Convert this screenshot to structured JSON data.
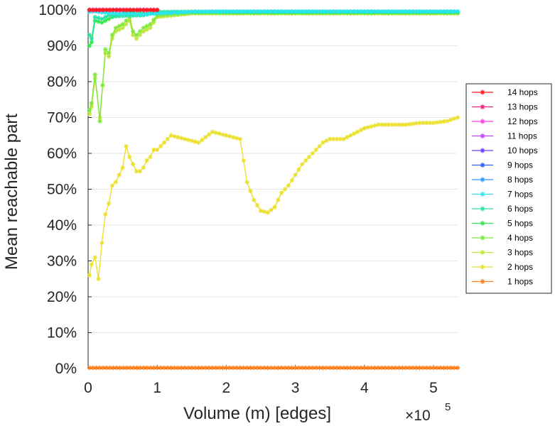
{
  "chart_data": {
    "type": "line",
    "title": "",
    "xlabel": "Volume (m) [edges]",
    "ylabel": "Mean reachable part",
    "x_exponent_label": "×10",
    "x_exponent_power": "5",
    "x_scale": 100000,
    "xlim": [
      0,
      535000
    ],
    "ylim": [
      0,
      100
    ],
    "x_ticks": [
      0,
      100000,
      200000,
      300000,
      400000,
      500000
    ],
    "x_tick_labels": [
      "0",
      "1",
      "2",
      "3",
      "4",
      "5"
    ],
    "y_ticks": [
      0,
      10,
      20,
      30,
      40,
      50,
      60,
      70,
      80,
      90,
      100
    ],
    "y_tick_labels": [
      "0%",
      "10%",
      "20%",
      "30%",
      "40%",
      "50%",
      "60%",
      "70%",
      "80%",
      "90%",
      "100%"
    ],
    "grid": "horizontal",
    "legend_position": "right",
    "series": [
      {
        "name": "14 hops",
        "color": "#ff1a1a",
        "x": [
          2000,
          100000
        ],
        "y": [
          100,
          100
        ]
      },
      {
        "name": "13 hops",
        "color": "#ff1f7a",
        "x": [
          2000,
          100000
        ],
        "y": [
          100,
          100
        ]
      },
      {
        "name": "12 hops",
        "color": "#ff3fe0",
        "x": [
          2000,
          100000
        ],
        "y": [
          100,
          100
        ]
      },
      {
        "name": "11 hops",
        "color": "#c040ff",
        "x": [
          2000,
          100000
        ],
        "y": [
          100,
          100
        ]
      },
      {
        "name": "10 hops",
        "color": "#6a3dff",
        "x": [
          2000,
          100000
        ],
        "y": [
          100,
          100
        ]
      },
      {
        "name": "9 hops",
        "color": "#2f5cff",
        "x": [
          2000,
          100000
        ],
        "y": [
          100,
          100
        ]
      },
      {
        "name": "8 hops",
        "color": "#2f9bff",
        "x": [
          2000,
          100000
        ],
        "y": [
          100,
          100
        ]
      },
      {
        "name": "7 hops",
        "color": "#28e5f2",
        "x": [
          2000,
          10000,
          20000,
          40000,
          60000,
          80000,
          100000,
          150000,
          200000,
          300000,
          400000,
          535000
        ],
        "y": [
          99.5,
          99.6,
          99.3,
          99.0,
          99.0,
          98.8,
          99.0,
          99.5,
          99.6,
          99.6,
          99.6,
          99.6
        ]
      },
      {
        "name": "6 hops",
        "color": "#2be0a6",
        "x": [
          2000,
          5000,
          10000,
          20000,
          30000,
          40000,
          60000,
          80000,
          100000,
          150000,
          200000,
          300000,
          400000,
          535000
        ],
        "y": [
          93,
          92,
          98,
          97.5,
          98.5,
          98.2,
          98.4,
          98.5,
          99.4,
          99.5,
          99.5,
          99.5,
          99.5,
          99.5
        ]
      },
      {
        "name": "5 hops",
        "color": "#33e84a",
        "x": [
          2000,
          5000,
          10000,
          20000,
          30000,
          40000,
          50000,
          60000,
          70000,
          80000,
          90000,
          100000,
          150000,
          200000,
          300000,
          400000,
          535000
        ],
        "y": [
          90,
          91,
          97,
          96.5,
          97.5,
          98.5,
          99,
          99.5,
          99,
          99,
          99,
          99.3,
          99.5,
          99.4,
          99.4,
          99.4,
          99.4
        ]
      },
      {
        "name": "4 hops",
        "color": "#7fe83a",
        "x": [
          2000,
          5000,
          10000,
          17000,
          25000,
          30000,
          35000,
          40000,
          50000,
          60000,
          65000,
          70000,
          75000,
          80000,
          90000,
          100000,
          150000,
          200000,
          300000,
          400000,
          535000
        ],
        "y": [
          72,
          74,
          82,
          69,
          89,
          88,
          93,
          95,
          96,
          98,
          94,
          93,
          94,
          95,
          96,
          98.5,
          99.2,
          99.2,
          99.2,
          99.2,
          99.2
        ]
      },
      {
        "name": "3 hops",
        "color": "#bfe63a",
        "x": [
          2000,
          5000,
          10000,
          17000,
          25000,
          30000,
          35000,
          40000,
          50000,
          60000,
          65000,
          70000,
          75000,
          80000,
          90000,
          100000,
          150000,
          200000,
          300000,
          400000,
          535000
        ],
        "y": [
          71,
          73,
          81,
          70,
          88,
          87,
          92,
          94,
          95,
          97,
          93,
          92,
          93,
          94,
          95,
          98,
          99,
          99,
          99,
          99,
          99
        ]
      },
      {
        "name": "2 hops",
        "color": "#ece02e",
        "x": [
          2000,
          5000,
          10000,
          15000,
          20000,
          25000,
          30000,
          35000,
          40000,
          45000,
          50000,
          55000,
          60000,
          65000,
          70000,
          75000,
          80000,
          85000,
          90000,
          95000,
          100000,
          110000,
          120000,
          130000,
          140000,
          150000,
          160000,
          170000,
          180000,
          190000,
          200000,
          210000,
          220000,
          230000,
          240000,
          250000,
          260000,
          270000,
          280000,
          290000,
          300000,
          310000,
          320000,
          330000,
          340000,
          350000,
          360000,
          370000,
          380000,
          390000,
          400000,
          420000,
          440000,
          460000,
          480000,
          500000,
          520000,
          535000
        ],
        "y": [
          26,
          29,
          31,
          25,
          35,
          43,
          46,
          51,
          52,
          54,
          56,
          62,
          59,
          57,
          55,
          55,
          56,
          58,
          59,
          61,
          61,
          63,
          65,
          64.5,
          64,
          63.5,
          63,
          64.5,
          66,
          65.5,
          65,
          64.5,
          64,
          52,
          47,
          44,
          43.5,
          45,
          49,
          51,
          54,
          57,
          59,
          61,
          63,
          64,
          64,
          64,
          65,
          66,
          67,
          68,
          68,
          68,
          68.5,
          68.5,
          69,
          70
        ]
      },
      {
        "name": "1 hops",
        "color": "#ff7f1a",
        "x": [
          2000,
          100000,
          200000,
          300000,
          400000,
          535000
        ],
        "y": [
          0.2,
          0.2,
          0.2,
          0.2,
          0.2,
          0.2
        ]
      }
    ]
  }
}
